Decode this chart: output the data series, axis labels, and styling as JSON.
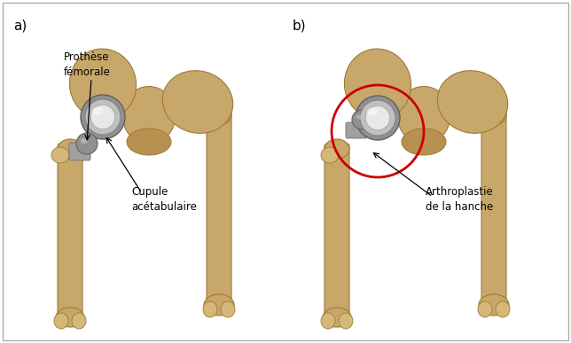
{
  "figure_width": 6.44,
  "figure_height": 3.87,
  "dpi": 100,
  "background_color": "#ffffff",
  "border_color": "#aaaaaa",
  "label_a": "a)",
  "label_b": "b)",
  "annotation_color": "#000000",
  "arrow_color": "#000000",
  "text_prothese": "Prothèse\nfémorale",
  "text_cupule": "Cupule\nacétabulaire",
  "text_arthroplastie": "Arthroplastie\nde la hanche",
  "annotation_fontsize": 8.5,
  "label_fontsize": 11,
  "circle_color": "#cc0000",
  "circle_linewidth": 2.0,
  "bone_color_light": "#d4b878",
  "bone_color_mid": "#c8a86a",
  "bone_color_dark": "#b89050",
  "bone_shadow": "#a07838",
  "implant_outer": "#909090",
  "implant_mid": "#c0c0c0",
  "implant_inner": "#e8e8e8",
  "implant_ball": "#888888"
}
